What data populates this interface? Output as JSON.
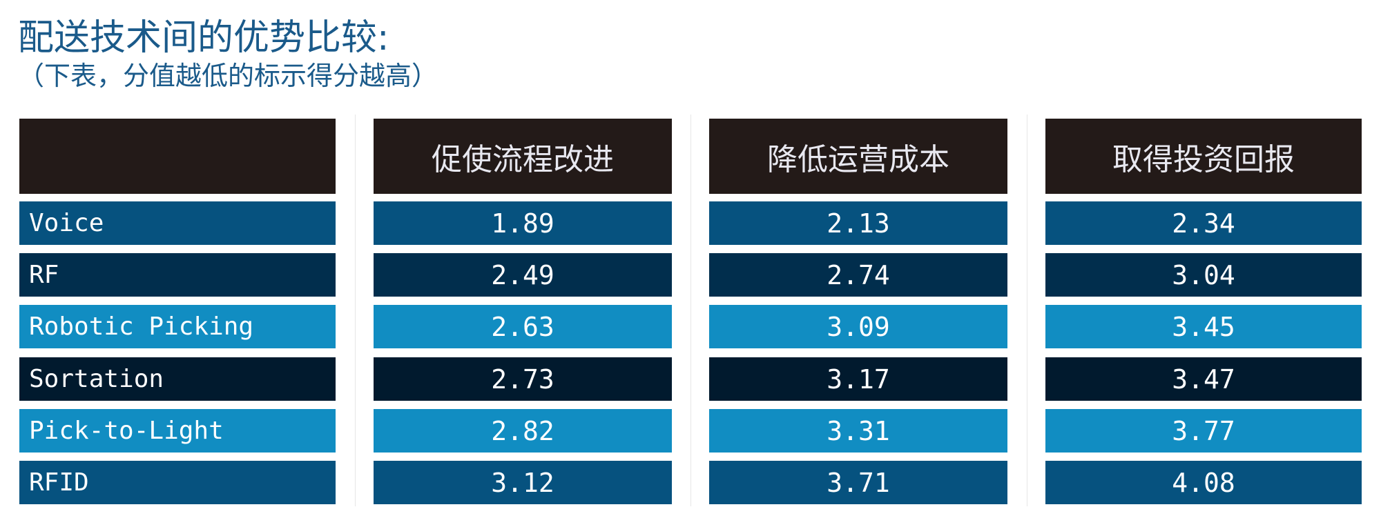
{
  "title": "配送技术间的优势比较:",
  "subtitle": "（下表，分值越低的标示得分越高）",
  "chart_data": {
    "type": "table",
    "columns": [
      "",
      "促使流程改进",
      "降低运营成本",
      "取得投资回报"
    ],
    "rows": [
      {
        "label": "Voice",
        "values": [
          "1.89",
          "2.13",
          "2.34"
        ],
        "color": "#06527f"
      },
      {
        "label": "RF",
        "values": [
          "2.49",
          "2.74",
          "3.04"
        ],
        "color": "#012e4d"
      },
      {
        "label": "Robotic Picking",
        "values": [
          "2.63",
          "3.09",
          "3.45"
        ],
        "color": "#118dc2"
      },
      {
        "label": "Sortation",
        "values": [
          "2.73",
          "3.17",
          "3.47"
        ],
        "color": "#011a2e"
      },
      {
        "label": "Pick-to-Light",
        "values": [
          "2.82",
          "3.31",
          "3.77"
        ],
        "color": "#118dc2"
      },
      {
        "label": "RFID",
        "values": [
          "3.12",
          "3.71",
          "4.08"
        ],
        "color": "#06527f"
      }
    ],
    "header_color": "#231a18",
    "note": "lower score is better"
  }
}
